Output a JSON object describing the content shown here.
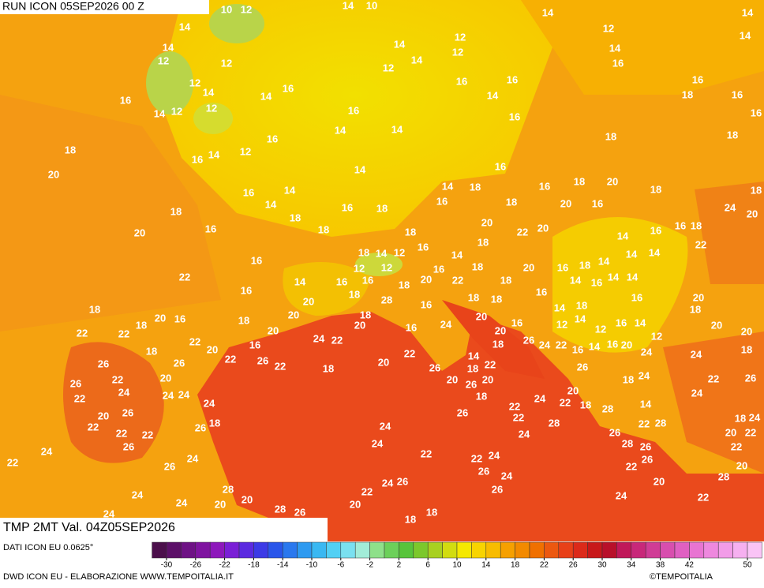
{
  "header": {
    "run": "RUN ICON 05SEP2026 00 Z",
    "field": "TMP 2MT Val. 04Z05SEP2026"
  },
  "footer": {
    "source": "DATI ICON EU 0.0625°",
    "credit": "DWD ICON EU - ELABORAZIONE WWW.TEMPOITALIA.IT",
    "copyright": "©TEMPOITALIA"
  },
  "colorbar": {
    "ticks": [
      -30,
      -26,
      -22,
      -18,
      -14,
      -10,
      -6,
      -2,
      2,
      6,
      10,
      14,
      18,
      22,
      26,
      30,
      34,
      38,
      42,
      50
    ]
  },
  "map": {
    "labels": [
      10,
      12,
      14,
      10,
      14,
      14,
      14,
      14,
      14,
      12,
      12,
      14,
      12,
      12,
      14,
      12,
      14,
      12,
      16,
      12,
      16,
      16,
      16,
      16,
      14,
      14,
      16,
      18,
      14,
      12,
      12,
      16,
      14,
      16,
      14,
      14,
      16,
      16,
      18,
      16,
      18,
      18,
      16,
      14,
      12,
      20,
      14,
      16,
      16,
      14,
      14,
      18,
      16,
      18,
      20,
      18,
      18,
      18,
      14,
      16,
      18,
      16,
      18,
      20,
      16,
      24,
      20,
      20,
      16,
      18,
      18,
      18,
      20,
      22,
      20,
      16,
      18,
      16,
      18,
      14,
      12,
      16,
      14,
      18,
      14,
      16,
      22,
      12,
      12,
      18,
      20,
      16,
      18,
      14,
      14,
      14,
      22,
      14,
      16,
      16,
      18,
      20,
      16,
      22,
      18,
      14,
      16,
      14,
      14,
      16,
      18,
      18,
      18,
      16,
      16,
      20,
      18,
      20,
      16,
      20,
      28,
      16,
      14,
      18,
      18,
      18,
      18,
      20,
      18,
      20,
      20,
      16,
      12,
      14,
      12,
      16,
      14,
      22,
      22,
      22,
      20,
      24,
      22,
      24,
      20,
      26,
      24,
      22,
      16,
      14,
      16,
      12,
      20,
      20,
      20,
      16,
      16,
      18,
      20,
      24,
      18,
      22,
      26,
      22,
      22,
      14,
      24,
      18,
      26,
      26,
      20,
      18,
      26,
      18,
      22,
      26,
      26,
      22,
      20,
      20,
      26,
      20,
      18,
      24,
      22,
      26,
      22,
      24,
      24,
      24,
      18,
      24,
      20,
      24,
      24,
      20,
      26,
      22,
      22,
      18,
      28,
      14,
      18,
      24,
      22,
      18,
      26,
      26,
      22,
      28,
      22,
      28,
      20,
      22,
      22,
      24,
      26,
      22,
      26,
      24,
      24,
      22,
      24,
      28,
      26,
      22,
      22,
      26,
      24,
      22,
      24,
      26,
      22,
      20,
      24,
      26,
      24,
      20,
      28,
      28,
      24,
      26,
      22,
      26,
      20,
      24,
      20,
      24,
      22,
      28,
      26,
      20,
      18,
      18,
      24,
      28,
      24
    ]
  }
}
